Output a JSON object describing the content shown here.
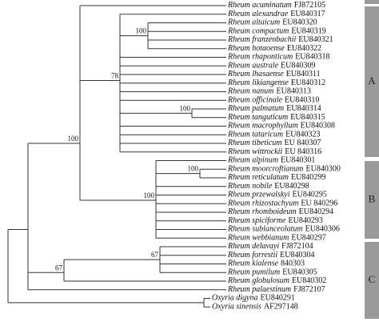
{
  "leaves": [
    {
      "species": "Rheum acuminatum",
      "accession": "FJ872105"
    },
    {
      "species": "Rheum alexandrae",
      "accession": "EU840317"
    },
    {
      "species": "Rheum altaicum",
      "accession": "EU840320"
    },
    {
      "species": "Rheum compactum",
      "accession": "EU840319"
    },
    {
      "species": "Rheum franzenbachii",
      "accession": "EU840321"
    },
    {
      "species": "Rheum hotaoense",
      "accession": "EU840322"
    },
    {
      "species": "Rheum rhaponticum",
      "accession": "EU840318"
    },
    {
      "species": "Rheum australe",
      "accession": "EU840309"
    },
    {
      "species": "Rheum lhasaense",
      "accession": "EU840311"
    },
    {
      "species": "Rheum likiangense",
      "accession": "EU840312"
    },
    {
      "species": "Rheum nanum",
      "accession": "EU840313"
    },
    {
      "species": "Rheum officinale",
      "accession": "EU840310"
    },
    {
      "species": "Rheum palmatum",
      "accession": "EU840314"
    },
    {
      "species": "Rheum tanguticum",
      "accession": "EU840315"
    },
    {
      "species": "Rheum macrophyllum",
      "accession": "EU840308"
    },
    {
      "species": "Rheum tataricum",
      "accession": "EU840323"
    },
    {
      "species": "Rheum tibeticum",
      "accession": "EU 840307"
    },
    {
      "species": "Rheum wittrockii",
      "accession": "EU 840316"
    },
    {
      "species": "Rheum alpinum",
      "accession": "EU840301"
    },
    {
      "species": "Rheum moorcroftianum",
      "accession": "EU840300"
    },
    {
      "species": "Rheum reticulatum",
      "accession": "EU840299"
    },
    {
      "species": "Rheum nobile",
      "accession": "EU840298"
    },
    {
      "species": "Rheum przewalskyi",
      "accession": "EU840295"
    },
    {
      "species": "Rheum rhizostachyum",
      "accession": "EU 840296"
    },
    {
      "species": "Rheum rhomboideum",
      "accession": "EU840294"
    },
    {
      "species": "Rheum spiciforme",
      "accession": "EU840293"
    },
    {
      "species": "Rheum sublanceolatum",
      "accession": "EU840306"
    },
    {
      "species": "Rheum webbianum",
      "accession": "EU840297"
    },
    {
      "species": "Rheum delavayi",
      "accession": "FJ872104"
    },
    {
      "species": "Rheum forrestii",
      "accession": "EU840304"
    },
    {
      "species": "Rheum kialense",
      "accession": "840303"
    },
    {
      "species": "Rheum pumilum",
      "accession": "EU840305"
    },
    {
      "species": "Rheum globulosum",
      "accession": "EU840302"
    },
    {
      "species": "Rheum palaestinum",
      "accession": "FJ872107"
    },
    {
      "species": "Oxyria digyna",
      "accession": "EU840291"
    },
    {
      "species": "Oxyria sinensis",
      "accession": "AF297148"
    }
  ],
  "bootstrap": [
    "100",
    "78",
    "100",
    "100",
    "100",
    "100",
    "67",
    "67"
  ],
  "clades": [
    "A",
    "B",
    "C"
  ]
}
